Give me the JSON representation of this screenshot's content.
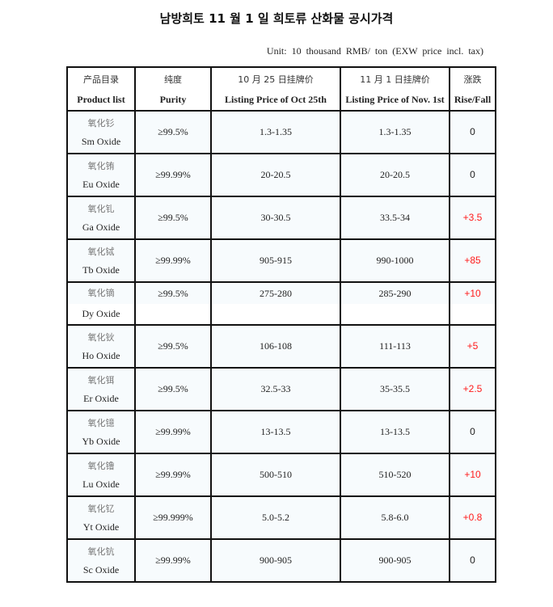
{
  "title": "남방희토 11 월 1 일 희토류 산화물 공시가격",
  "unit": "Unit: 10 thousand RMB/ ton (EXW price incl. tax)",
  "colors": {
    "rise": "#ff1a1a",
    "zero": "#222222",
    "cell_bg": "#f7fbfd",
    "border": "#111111"
  },
  "headers": [
    {
      "zh": "产品目录",
      "en": "Product list"
    },
    {
      "zh": "纯度",
      "en": "Purity"
    },
    {
      "zh": "10 月 25 日挂牌价",
      "en": "Listing Price of Oct 25th"
    },
    {
      "zh": "11 月 1 日挂牌价",
      "en": "Listing Price of Nov. 1st"
    },
    {
      "zh": "涨跌",
      "en": "Rise/Fall"
    }
  ],
  "rows": [
    {
      "zh": "氧化钐",
      "en": "Sm Oxide",
      "purity": "≥99.5%",
      "oct25": "1.3-1.35",
      "nov1": "1.3-1.35",
      "change": "0"
    },
    {
      "zh": "氧化铕",
      "en": "Eu Oxide",
      "purity": "≥99.99%",
      "oct25": "20-20.5",
      "nov1": "20-20.5",
      "change": "0"
    },
    {
      "zh": "氧化钆",
      "en": "Ga Oxide",
      "purity": "≥99.5%",
      "oct25": "30-30.5",
      "nov1": "33.5-34",
      "change": "+3.5"
    },
    {
      "zh": "氧化铽",
      "en": "Tb Oxide",
      "purity": "≥99.99%",
      "oct25": "905-915",
      "nov1": "990-1000",
      "change": "+85"
    },
    {
      "zh": "氧化镝",
      "en": "Dy Oxide",
      "purity": "≥99.5%",
      "oct25": "275-280",
      "nov1": "285-290",
      "change": "+10",
      "split": true
    },
    {
      "zh": "氧化钬",
      "en": "Ho Oxide",
      "purity": "≥99.5%",
      "oct25": "106-108",
      "nov1": "111-113",
      "change": "+5"
    },
    {
      "zh": "氧化铒",
      "en": "Er Oxide",
      "purity": "≥99.5%",
      "oct25": "32.5-33",
      "nov1": "35-35.5",
      "change": "+2.5"
    },
    {
      "zh": "氧化镱",
      "en": "Yb Oxide",
      "purity": "≥99.99%",
      "oct25": "13-13.5",
      "nov1": "13-13.5",
      "change": "0"
    },
    {
      "zh": "氧化镥",
      "en": "Lu Oxide",
      "purity": "≥99.99%",
      "oct25": "500-510",
      "nov1": "510-520",
      "change": "+10"
    },
    {
      "zh": "氧化钇",
      "en": "Yt Oxide",
      "purity": "≥99.999%",
      "oct25": "5.0-5.2",
      "nov1": "5.8-6.0",
      "change": "+0.8"
    },
    {
      "zh": "氧化钪",
      "en": "Sc Oxide",
      "purity": "≥99.99%",
      "oct25": "900-905",
      "nov1": "900-905",
      "change": "0"
    }
  ]
}
